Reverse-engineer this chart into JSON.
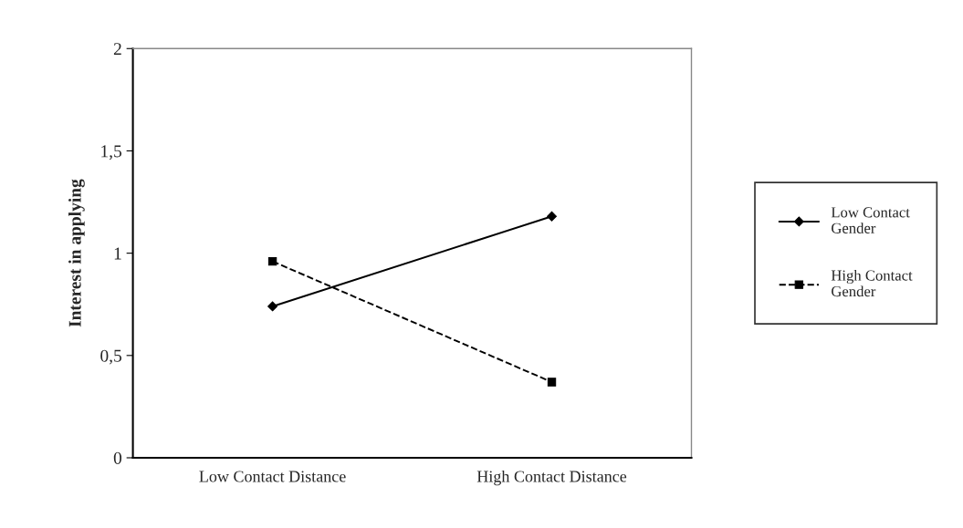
{
  "chart_data": {
    "type": "line",
    "ylabel": "Interest in applying",
    "categories": [
      "Low Contact Distance",
      "High Contact Distance"
    ],
    "series": [
      {
        "name": "Low Contact Gender",
        "color": "#000000",
        "values": [
          0.74,
          1.18
        ],
        "marker": "diamond",
        "line_style": "solid"
      },
      {
        "name": "High Contact Gender",
        "color": "#000000",
        "values": [
          0.96,
          0.37
        ],
        "marker": "square",
        "line_style": "dashed"
      }
    ],
    "ylim": [
      0,
      2
    ],
    "yticks": [
      0,
      {
        "value": 0.5,
        "label": "0,5"
      },
      1,
      {
        "value": 1.5,
        "label": "1,5"
      },
      2
    ],
    "grid": false,
    "legend": "right"
  }
}
